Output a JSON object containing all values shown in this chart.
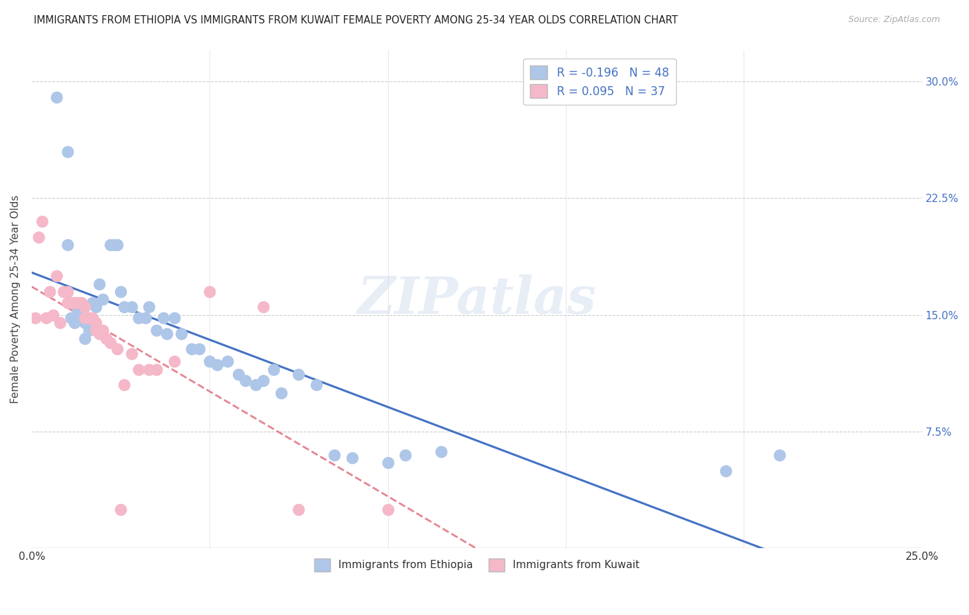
{
  "title": "IMMIGRANTS FROM ETHIOPIA VS IMMIGRANTS FROM KUWAIT FEMALE POVERTY AMONG 25-34 YEAR OLDS CORRELATION CHART",
  "source": "Source: ZipAtlas.com",
  "ylabel": "Female Poverty Among 25-34 Year Olds",
  "xlim": [
    0.0,
    0.25
  ],
  "ylim": [
    0.0,
    0.32
  ],
  "xticks": [
    0.0,
    0.05,
    0.1,
    0.15,
    0.2,
    0.25
  ],
  "xticklabels": [
    "0.0%",
    "",
    "",
    "",
    "",
    "25.0%"
  ],
  "yticks": [
    0.0,
    0.075,
    0.15,
    0.225,
    0.3
  ],
  "yticklabels": [
    "",
    "7.5%",
    "15.0%",
    "22.5%",
    "30.0%"
  ],
  "legend_ethiopia": "Immigrants from Ethiopia",
  "legend_kuwait": "Immigrants from Kuwait",
  "R_ethiopia": -0.196,
  "N_ethiopia": 48,
  "R_kuwait": 0.095,
  "N_kuwait": 37,
  "color_ethiopia": "#aec6e8",
  "color_kuwait": "#f5b8c8",
  "line_color_ethiopia": "#4472c4",
  "line_color_kuwait": "#e07080",
  "watermark": "ZIPatlas",
  "ethiopia_x": [
    0.007,
    0.01,
    0.01,
    0.011,
    0.012,
    0.013,
    0.013,
    0.015,
    0.015,
    0.016,
    0.017,
    0.018,
    0.019,
    0.02,
    0.022,
    0.023,
    0.024,
    0.025,
    0.026,
    0.028,
    0.03,
    0.032,
    0.033,
    0.035,
    0.037,
    0.038,
    0.04,
    0.042,
    0.045,
    0.047,
    0.05,
    0.052,
    0.055,
    0.058,
    0.06,
    0.063,
    0.065,
    0.068,
    0.07,
    0.075,
    0.08,
    0.085,
    0.09,
    0.1,
    0.105,
    0.115,
    0.195,
    0.21
  ],
  "ethiopia_y": [
    0.29,
    0.255,
    0.195,
    0.148,
    0.145,
    0.148,
    0.153,
    0.145,
    0.135,
    0.14,
    0.158,
    0.155,
    0.17,
    0.16,
    0.195,
    0.195,
    0.195,
    0.165,
    0.155,
    0.155,
    0.148,
    0.148,
    0.155,
    0.14,
    0.148,
    0.138,
    0.148,
    0.138,
    0.128,
    0.128,
    0.12,
    0.118,
    0.12,
    0.112,
    0.108,
    0.105,
    0.108,
    0.115,
    0.1,
    0.112,
    0.105,
    0.06,
    0.058,
    0.055,
    0.06,
    0.062,
    0.05,
    0.06
  ],
  "kuwait_x": [
    0.001,
    0.002,
    0.003,
    0.004,
    0.005,
    0.006,
    0.007,
    0.008,
    0.009,
    0.01,
    0.01,
    0.011,
    0.012,
    0.013,
    0.014,
    0.015,
    0.015,
    0.016,
    0.017,
    0.018,
    0.018,
    0.019,
    0.02,
    0.021,
    0.022,
    0.024,
    0.026,
    0.028,
    0.03,
    0.033,
    0.035,
    0.04,
    0.05,
    0.065,
    0.075,
    0.1,
    0.025
  ],
  "kuwait_y": [
    0.148,
    0.2,
    0.21,
    0.148,
    0.165,
    0.15,
    0.175,
    0.145,
    0.165,
    0.165,
    0.158,
    0.158,
    0.158,
    0.158,
    0.158,
    0.148,
    0.155,
    0.148,
    0.148,
    0.145,
    0.14,
    0.138,
    0.14,
    0.135,
    0.132,
    0.128,
    0.105,
    0.125,
    0.115,
    0.115,
    0.115,
    0.12,
    0.165,
    0.155,
    0.025,
    0.025,
    0.025
  ]
}
